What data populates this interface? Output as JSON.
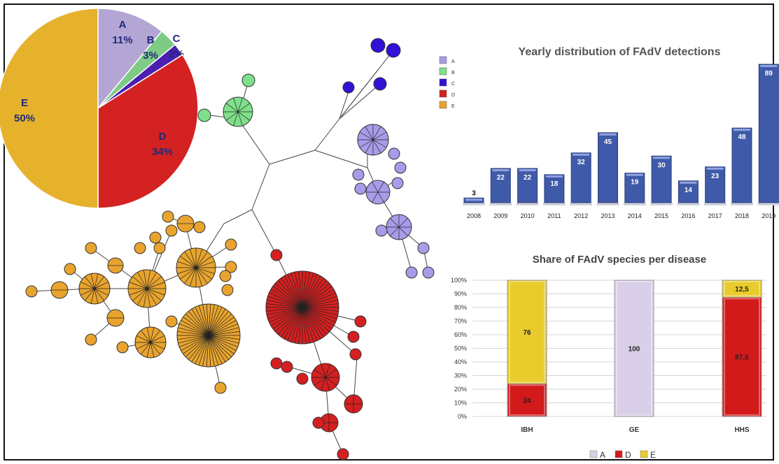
{
  "chart_data": [
    {
      "type": "pie",
      "title": "",
      "slices": [
        {
          "label": "A",
          "value": 11,
          "text": "11%",
          "color": "#b3a5d4"
        },
        {
          "label": "B",
          "value": 3,
          "text": "3%",
          "color": "#7ecb86"
        },
        {
          "label": "C",
          "value": 2,
          "text": "2%",
          "color": "#4b1fb0"
        },
        {
          "label": "D",
          "value": 34,
          "text": "34%",
          "color": "#d42222"
        },
        {
          "label": "E",
          "value": 50,
          "text": "50%",
          "color": "#e6b22c"
        }
      ],
      "label_color": "#1f2a7a"
    },
    {
      "type": "network",
      "title": "",
      "legend": [
        {
          "label": "A",
          "color": "#a79ce8"
        },
        {
          "label": "B",
          "color": "#7ee08a"
        },
        {
          "label": "C",
          "color": "#2f12d6"
        },
        {
          "label": "D",
          "color": "#d42020"
        },
        {
          "label": "E",
          "color": "#e8a42e"
        }
      ]
    },
    {
      "type": "bar",
      "title": "Yearly distribution of FAdV detections",
      "categories": [
        "2008",
        "2009",
        "2010",
        "2011",
        "2012",
        "2013",
        "2014",
        "2015",
        "2016",
        "2017",
        "2018",
        "2019"
      ],
      "values": [
        3,
        22,
        22,
        18,
        32,
        45,
        19,
        30,
        14,
        23,
        48,
        89
      ],
      "xlabel": "",
      "ylabel": "",
      "ylim": [
        0,
        89
      ],
      "color": "#3f5aa8",
      "grid": false
    },
    {
      "type": "bar",
      "stacked": true,
      "title": "Share of FAdV species per disease",
      "categories": [
        "IBH",
        "GE",
        "HHS"
      ],
      "yticks": [
        "0%",
        "10%",
        "20%",
        "30%",
        "40%",
        "50%",
        "60%",
        "70%",
        "80%",
        "90%",
        "100%"
      ],
      "ylim": [
        0,
        100
      ],
      "series": [
        {
          "name": "A",
          "values": [
            0,
            100,
            0
          ],
          "labels": [
            "",
            "100",
            ""
          ],
          "color": "#d9cfe8"
        },
        {
          "name": "D",
          "values": [
            24,
            0,
            87.5
          ],
          "labels": [
            "24",
            "",
            "87,5"
          ],
          "color": "#d21a1a"
        },
        {
          "name": "E",
          "values": [
            76,
            0,
            12.5
          ],
          "labels": [
            "76",
            "",
            "12,5"
          ],
          "color": "#e9cc2c"
        }
      ],
      "legend_position": "bottom",
      "grid": true
    }
  ]
}
